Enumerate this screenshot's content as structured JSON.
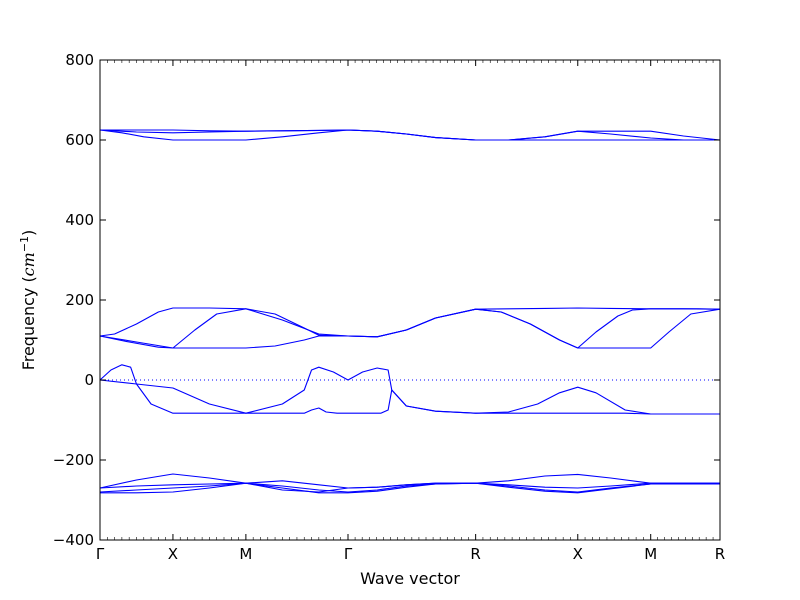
{
  "chart_data": {
    "type": "line",
    "xlabel": "Wave vector",
    "ylabel": {
      "prefix": "Frequency (",
      "unit": "cm",
      "exponent": "−1",
      "suffix": ")"
    },
    "ylim": [
      -400,
      800
    ],
    "yticks": [
      -400,
      -200,
      0,
      200,
      400,
      600,
      800
    ],
    "ytick_labels": [
      "−400",
      "−200",
      "0",
      "200",
      "400",
      "600",
      "800"
    ],
    "xlim": [
      0,
      8.5
    ],
    "xticks": [
      0,
      1,
      2,
      3.4,
      5.15,
      6.55,
      7.55,
      8.5
    ],
    "xtick_labels": [
      "Γ",
      "X",
      "M",
      "Γ",
      "R",
      "X",
      "M",
      "R"
    ],
    "zero_line": true,
    "line_color": "#0000ff",
    "series": [
      {
        "x": [
          0,
          0.5,
          1,
          1.5,
          2,
          2.5,
          3,
          3.4,
          3.8,
          4.2,
          4.6,
          5.15,
          5.6,
          6.1,
          6.55,
          7.0,
          7.55,
          8.0,
          8.5
        ],
        "y": [
          625,
          625,
          625,
          623,
          622,
          623,
          624,
          625,
          622,
          615,
          606,
          600,
          600,
          608,
          622,
          622,
          622,
          610,
          600
        ]
      },
      {
        "x": [
          0,
          0.5,
          1,
          1.5,
          2,
          2.5,
          3,
          3.4,
          3.8,
          4.2,
          4.6,
          5.15,
          5.6,
          6.1,
          6.55,
          7.0,
          7.55,
          8.0,
          8.5
        ],
        "y": [
          625,
          620,
          618,
          620,
          622,
          623,
          624,
          625,
          622,
          615,
          606,
          600,
          600,
          600,
          600,
          600,
          600,
          600,
          600
        ]
      },
      {
        "x": [
          0,
          0.3,
          0.6,
          1,
          1.5,
          2,
          2.5,
          3,
          3.4,
          3.8,
          4.2,
          4.6,
          5.15,
          5.6,
          6.1,
          6.55,
          7.0,
          7.55,
          8.0,
          8.5
        ],
        "y": [
          625,
          618,
          608,
          600,
          600,
          600,
          608,
          618,
          625,
          622,
          615,
          606,
          600,
          600,
          608,
          622,
          615,
          605,
          600,
          600
        ]
      },
      {
        "x": [
          0,
          0.2,
          0.5,
          0.8,
          1,
          1.5,
          2,
          2.5,
          3,
          3.4,
          3.8,
          4.2,
          4.6,
          5.15,
          5.6,
          6.1,
          6.55,
          7.0,
          7.55,
          8.0,
          8.5
        ],
        "y": [
          110,
          115,
          140,
          170,
          180,
          180,
          178,
          150,
          115,
          110,
          108,
          125,
          155,
          177,
          178,
          179,
          180,
          179,
          178,
          178,
          177
        ]
      },
      {
        "x": [
          0,
          0.4,
          0.8,
          1,
          1.3,
          1.6,
          2,
          2.4,
          2.8,
          3.0,
          3.4,
          3.8,
          4.2,
          4.6,
          5.15,
          5.5,
          5.9,
          6.3,
          6.55,
          6.8,
          7.1,
          7.3,
          7.55,
          7.9,
          8.2,
          8.5
        ],
        "y": [
          110,
          95,
          82,
          80,
          125,
          165,
          178,
          165,
          130,
          112,
          110,
          108,
          125,
          155,
          177,
          170,
          140,
          100,
          80,
          120,
          160,
          175,
          178,
          178,
          178,
          177
        ]
      },
      {
        "x": [
          0,
          0.5,
          1,
          1.5,
          2,
          2.4,
          2.8,
          3.0,
          3.4,
          3.8,
          4.2,
          4.6,
          5.15,
          5.5,
          5.9,
          6.3,
          6.55,
          7.0,
          7.3,
          7.55,
          7.8,
          8.1,
          8.5
        ],
        "y": [
          110,
          95,
          80,
          80,
          80,
          85,
          100,
          110,
          110,
          108,
          125,
          155,
          177,
          170,
          140,
          100,
          80,
          80,
          80,
          80,
          120,
          165,
          177
        ]
      },
      {
        "x": [
          0,
          0.15,
          0.3,
          0.42,
          0.5,
          0.7,
          1,
          1.5,
          2,
          2.5,
          2.8,
          2.9,
          3.0,
          3.1,
          3.25,
          3.4,
          3.55,
          3.7,
          3.85,
          3.95,
          4.0,
          4.2,
          4.6,
          5.15,
          5.6,
          6.0,
          6.3,
          6.55,
          6.8,
          7.2,
          7.55,
          8.0,
          8.5
        ],
        "y": [
          0,
          25,
          38,
          32,
          -10,
          -60,
          -83,
          -83,
          -83,
          -83,
          -83,
          -75,
          -70,
          -80,
          -83,
          -83,
          -83,
          -83,
          -83,
          -75,
          -25,
          -65,
          -78,
          -83,
          -83,
          -83,
          -83,
          -83,
          -83,
          -83,
          -85,
          -85,
          -85
        ]
      },
      {
        "x": [
          0,
          0.5,
          1,
          1.5,
          2,
          2.5,
          2.8,
          2.9,
          3.0,
          3.2,
          3.4,
          3.6,
          3.8,
          3.95,
          4.0,
          4.2,
          4.6,
          5.15,
          5.6,
          6.0,
          6.3,
          6.55,
          6.8,
          7.2,
          7.55,
          8.0,
          8.5
        ],
        "y": [
          0,
          -10,
          -20,
          -60,
          -83,
          -60,
          -25,
          25,
          32,
          20,
          0,
          20,
          30,
          25,
          -25,
          -65,
          -78,
          -83,
          -80,
          -60,
          -32,
          -18,
          -32,
          -75,
          -85,
          -85,
          -85
        ]
      },
      {
        "x": [
          0,
          0.5,
          1,
          1.5,
          2,
          2.5,
          3,
          3.4,
          3.8,
          4.2,
          4.6,
          5.15,
          5.6,
          6.1,
          6.55,
          7.0,
          7.55,
          8.0,
          8.5
        ],
        "y": [
          -270,
          -250,
          -235,
          -245,
          -258,
          -275,
          -280,
          -270,
          -268,
          -262,
          -258,
          -258,
          -252,
          -240,
          -236,
          -245,
          -258,
          -258,
          -258
        ]
      },
      {
        "x": [
          0,
          0.5,
          1,
          1.5,
          2,
          2.5,
          3,
          3.4,
          3.8,
          4.2,
          4.6,
          5.15,
          5.6,
          6.1,
          6.55,
          7.0,
          7.55,
          8.0,
          8.5
        ],
        "y": [
          -270,
          -265,
          -262,
          -260,
          -258,
          -252,
          -262,
          -270,
          -268,
          -262,
          -258,
          -258,
          -262,
          -268,
          -270,
          -265,
          -258,
          -258,
          -258
        ]
      },
      {
        "x": [
          0,
          0.5,
          1,
          1.5,
          2,
          2.5,
          3,
          3.4,
          3.8,
          4.2,
          4.6,
          5.15,
          5.6,
          6.1,
          6.55,
          7.0,
          7.55,
          8.0,
          8.5
        ],
        "y": [
          -280,
          -275,
          -270,
          -265,
          -258,
          -265,
          -275,
          -280,
          -275,
          -265,
          -260,
          -258,
          -265,
          -275,
          -280,
          -270,
          -260,
          -260,
          -260
        ]
      },
      {
        "x": [
          0,
          0.5,
          1,
          1.5,
          2,
          2.5,
          3,
          3.4,
          3.8,
          4.2,
          4.6,
          5.15,
          5.6,
          6.1,
          6.55,
          7.0,
          7.55,
          8.0,
          8.5
        ],
        "y": [
          -282,
          -282,
          -280,
          -270,
          -258,
          -270,
          -282,
          -282,
          -278,
          -268,
          -260,
          -258,
          -268,
          -278,
          -282,
          -272,
          -260,
          -260,
          -260
        ]
      }
    ]
  }
}
